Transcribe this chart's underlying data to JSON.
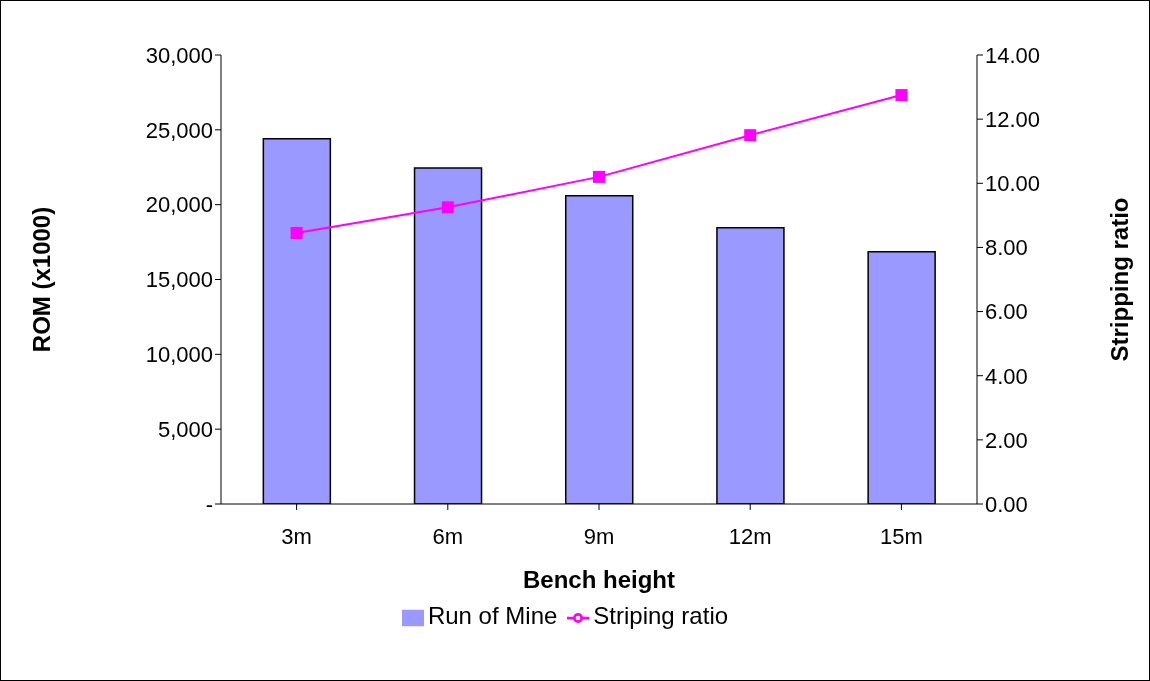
{
  "chart_data": {
    "type": "bar",
    "xlabel": "Bench height",
    "ylabel": "ROM (x1000)",
    "y2label": "Stripping ratio",
    "categories": [
      "3m",
      "6m",
      "9m",
      "12m",
      "15m"
    ],
    "series": [
      {
        "name": "Run of Mine",
        "color": "#9999ff",
        "values": [
          24400,
          22450,
          20600,
          18450,
          16850
        ]
      },
      {
        "name": "Striping ratio",
        "type": "line",
        "axis": "y2",
        "color": "#ff00ff",
        "marker": "square",
        "values": [
          8.45,
          9.25,
          10.2,
          11.5,
          12.75
        ]
      }
    ],
    "ylim": [
      0,
      30000
    ],
    "yticks": [
      {
        "value": 0,
        "label": "-"
      },
      {
        "value": 5000,
        "label": "5,000"
      },
      {
        "value": 10000,
        "label": "10,000"
      },
      {
        "value": 15000,
        "label": "15,000"
      },
      {
        "value": 20000,
        "label": "20,000"
      },
      {
        "value": 25000,
        "label": "25,000"
      },
      {
        "value": 30000,
        "label": "30,000"
      }
    ],
    "y2lim": [
      0,
      14
    ],
    "y2ticks": [
      {
        "value": 0,
        "label": "0.00"
      },
      {
        "value": 2,
        "label": "2.00"
      },
      {
        "value": 4,
        "label": "4.00"
      },
      {
        "value": 6,
        "label": "6.00"
      },
      {
        "value": 8,
        "label": "8.00"
      },
      {
        "value": 10,
        "label": "10.00"
      },
      {
        "value": 12,
        "label": "12.00"
      },
      {
        "value": 14,
        "label": "14.00"
      }
    ],
    "grid": false,
    "legend": "bottom"
  }
}
